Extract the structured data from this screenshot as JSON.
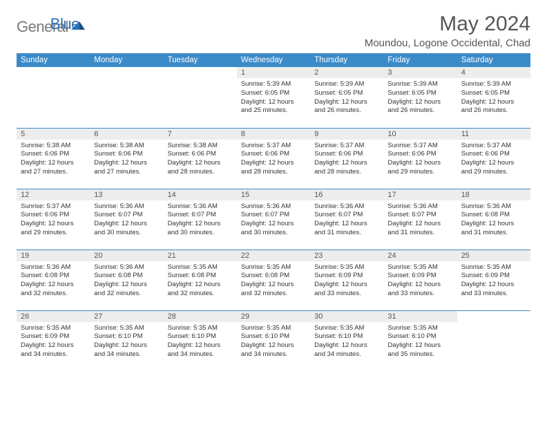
{
  "logo": {
    "text_gray": "General",
    "text_blue": "Blue"
  },
  "title": "May 2024",
  "location": "Moundou, Logone Occidental, Chad",
  "colors": {
    "header_bg": "#3b8bc9",
    "header_text": "#ffffff",
    "daynum_bg": "#ededed",
    "row_border": "#3b8bc9",
    "logo_gray": "#7a7a7a",
    "logo_blue": "#2a6fb5"
  },
  "day_headers": [
    "Sunday",
    "Monday",
    "Tuesday",
    "Wednesday",
    "Thursday",
    "Friday",
    "Saturday"
  ],
  "weeks": [
    [
      {
        "empty": true
      },
      {
        "empty": true
      },
      {
        "empty": true
      },
      {
        "num": "1",
        "sunrise": "5:39 AM",
        "sunset": "6:05 PM",
        "daylight": "12 hours and 25 minutes."
      },
      {
        "num": "2",
        "sunrise": "5:39 AM",
        "sunset": "6:05 PM",
        "daylight": "12 hours and 26 minutes."
      },
      {
        "num": "3",
        "sunrise": "5:39 AM",
        "sunset": "6:05 PM",
        "daylight": "12 hours and 26 minutes."
      },
      {
        "num": "4",
        "sunrise": "5:39 AM",
        "sunset": "6:05 PM",
        "daylight": "12 hours and 26 minutes."
      }
    ],
    [
      {
        "num": "5",
        "sunrise": "5:38 AM",
        "sunset": "6:06 PM",
        "daylight": "12 hours and 27 minutes."
      },
      {
        "num": "6",
        "sunrise": "5:38 AM",
        "sunset": "6:06 PM",
        "daylight": "12 hours and 27 minutes."
      },
      {
        "num": "7",
        "sunrise": "5:38 AM",
        "sunset": "6:06 PM",
        "daylight": "12 hours and 28 minutes."
      },
      {
        "num": "8",
        "sunrise": "5:37 AM",
        "sunset": "6:06 PM",
        "daylight": "12 hours and 28 minutes."
      },
      {
        "num": "9",
        "sunrise": "5:37 AM",
        "sunset": "6:06 PM",
        "daylight": "12 hours and 28 minutes."
      },
      {
        "num": "10",
        "sunrise": "5:37 AM",
        "sunset": "6:06 PM",
        "daylight": "12 hours and 29 minutes."
      },
      {
        "num": "11",
        "sunrise": "5:37 AM",
        "sunset": "6:06 PM",
        "daylight": "12 hours and 29 minutes."
      }
    ],
    [
      {
        "num": "12",
        "sunrise": "5:37 AM",
        "sunset": "6:06 PM",
        "daylight": "12 hours and 29 minutes."
      },
      {
        "num": "13",
        "sunrise": "5:36 AM",
        "sunset": "6:07 PM",
        "daylight": "12 hours and 30 minutes."
      },
      {
        "num": "14",
        "sunrise": "5:36 AM",
        "sunset": "6:07 PM",
        "daylight": "12 hours and 30 minutes."
      },
      {
        "num": "15",
        "sunrise": "5:36 AM",
        "sunset": "6:07 PM",
        "daylight": "12 hours and 30 minutes."
      },
      {
        "num": "16",
        "sunrise": "5:36 AM",
        "sunset": "6:07 PM",
        "daylight": "12 hours and 31 minutes."
      },
      {
        "num": "17",
        "sunrise": "5:36 AM",
        "sunset": "6:07 PM",
        "daylight": "12 hours and 31 minutes."
      },
      {
        "num": "18",
        "sunrise": "5:36 AM",
        "sunset": "6:08 PM",
        "daylight": "12 hours and 31 minutes."
      }
    ],
    [
      {
        "num": "19",
        "sunrise": "5:36 AM",
        "sunset": "6:08 PM",
        "daylight": "12 hours and 32 minutes."
      },
      {
        "num": "20",
        "sunrise": "5:36 AM",
        "sunset": "6:08 PM",
        "daylight": "12 hours and 32 minutes."
      },
      {
        "num": "21",
        "sunrise": "5:35 AM",
        "sunset": "6:08 PM",
        "daylight": "12 hours and 32 minutes."
      },
      {
        "num": "22",
        "sunrise": "5:35 AM",
        "sunset": "6:08 PM",
        "daylight": "12 hours and 32 minutes."
      },
      {
        "num": "23",
        "sunrise": "5:35 AM",
        "sunset": "6:09 PM",
        "daylight": "12 hours and 33 minutes."
      },
      {
        "num": "24",
        "sunrise": "5:35 AM",
        "sunset": "6:09 PM",
        "daylight": "12 hours and 33 minutes."
      },
      {
        "num": "25",
        "sunrise": "5:35 AM",
        "sunset": "6:09 PM",
        "daylight": "12 hours and 33 minutes."
      }
    ],
    [
      {
        "num": "26",
        "sunrise": "5:35 AM",
        "sunset": "6:09 PM",
        "daylight": "12 hours and 34 minutes."
      },
      {
        "num": "27",
        "sunrise": "5:35 AM",
        "sunset": "6:10 PM",
        "daylight": "12 hours and 34 minutes."
      },
      {
        "num": "28",
        "sunrise": "5:35 AM",
        "sunset": "6:10 PM",
        "daylight": "12 hours and 34 minutes."
      },
      {
        "num": "29",
        "sunrise": "5:35 AM",
        "sunset": "6:10 PM",
        "daylight": "12 hours and 34 minutes."
      },
      {
        "num": "30",
        "sunrise": "5:35 AM",
        "sunset": "6:10 PM",
        "daylight": "12 hours and 34 minutes."
      },
      {
        "num": "31",
        "sunrise": "5:35 AM",
        "sunset": "6:10 PM",
        "daylight": "12 hours and 35 minutes."
      },
      {
        "empty": true
      }
    ]
  ]
}
